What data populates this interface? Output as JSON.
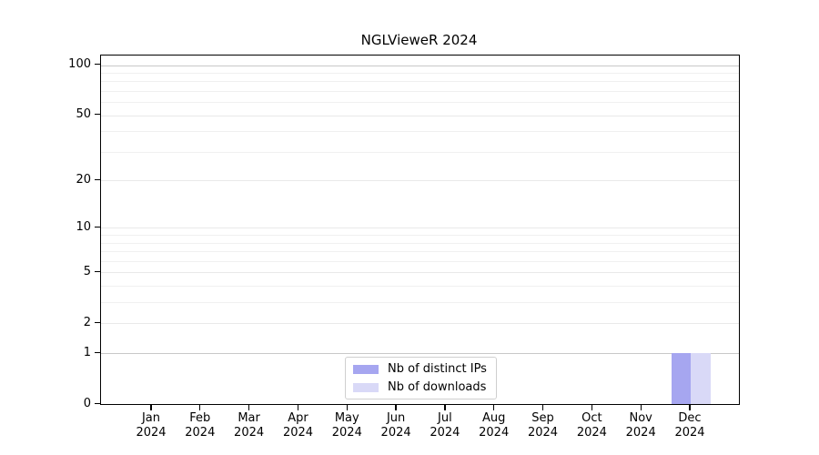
{
  "chart_data": {
    "type": "bar",
    "title": "NGLVieweR 2024",
    "categories": [
      "Jan 2024",
      "Feb 2024",
      "Mar 2024",
      "Apr 2024",
      "May 2024",
      "Jun 2024",
      "Jul 2024",
      "Aug 2024",
      "Sep 2024",
      "Oct 2024",
      "Nov 2024",
      "Dec 2024"
    ],
    "series": [
      {
        "name": "Nb of distinct IPs",
        "color": "#a6a6f0",
        "values": [
          0,
          0,
          0,
          0,
          0,
          0,
          0,
          0,
          0,
          0,
          0,
          1
        ]
      },
      {
        "name": "Nb of downloads",
        "color": "#d9d9f7",
        "values": [
          0,
          0,
          0,
          0,
          0,
          0,
          0,
          0,
          0,
          0,
          0,
          1
        ]
      }
    ],
    "yscale": "log1p",
    "ylim": [
      0,
      114
    ],
    "yticks": [
      0,
      1,
      2,
      5,
      10,
      20,
      50,
      100
    ],
    "ytick_minor": [
      3,
      4,
      6,
      7,
      8,
      9,
      30,
      40,
      60,
      70,
      80,
      90
    ],
    "grid": "horizontal",
    "legend_position": "inside-bottom-center"
  }
}
